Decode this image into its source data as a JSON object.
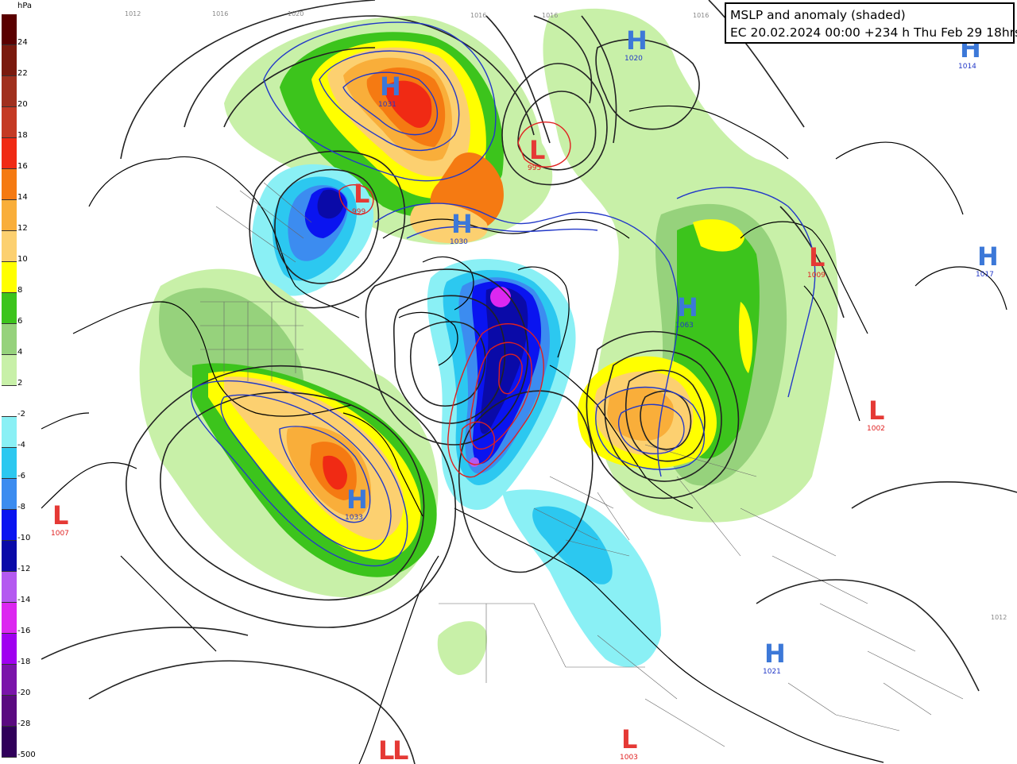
{
  "title": {
    "line1": "MSLP and anomaly (shaded)",
    "line2": "EC 20.02.2024 00:00 +234 h Thu Feb 29 18hrs"
  },
  "legend": {
    "unit": "hPa",
    "levels": [
      {
        "label": "24",
        "color": "#5a0000"
      },
      {
        "label": "22",
        "color": "#7a1a0e"
      },
      {
        "label": "20",
        "color": "#a0301e"
      },
      {
        "label": "18",
        "color": "#c43a24"
      },
      {
        "label": "16",
        "color": "#f02a14"
      },
      {
        "label": "14",
        "color": "#f57a12"
      },
      {
        "label": "12",
        "color": "#f9ae3a"
      },
      {
        "label": "10",
        "color": "#fcd070"
      },
      {
        "label": "8",
        "color": "#ffff00"
      },
      {
        "label": "6",
        "color": "#3cc41c"
      },
      {
        "label": "4",
        "color": "#96d27c"
      },
      {
        "label": "2",
        "color": "#c8f0a8"
      },
      {
        "label": "-2",
        "color": "#ffffff"
      },
      {
        "label": "-4",
        "color": "#8af0f5"
      },
      {
        "label": "-6",
        "color": "#2cc8f0"
      },
      {
        "label": "-8",
        "color": "#3c8cf0"
      },
      {
        "label": "-10",
        "color": "#0a14f0"
      },
      {
        "label": "-12",
        "color": "#0a0aa8"
      },
      {
        "label": "-14",
        "color": "#b45af0"
      },
      {
        "label": "-16",
        "color": "#dc28f0"
      },
      {
        "label": "-18",
        "color": "#a000f0"
      },
      {
        "label": "-20",
        "color": "#7a14aa"
      },
      {
        "label": "-28",
        "color": "#5a0a80"
      },
      {
        "label": "-500",
        "color": "#30005a"
      }
    ]
  },
  "centers": [
    {
      "type": "H",
      "value": "1031",
      "color": "#3c78d8"
    },
    {
      "type": "H",
      "value": "1020",
      "color": "#3c78d8"
    },
    {
      "type": "H",
      "value": "1014",
      "color": "#3c78d8"
    },
    {
      "type": "L",
      "value": "995",
      "color": "#e53935"
    },
    {
      "type": "L",
      "value": "999",
      "color": "#e53935"
    },
    {
      "type": "H",
      "value": "1030",
      "color": "#3c78d8"
    },
    {
      "type": "L",
      "value": "1009",
      "color": "#e53935"
    },
    {
      "type": "H",
      "value": "1017",
      "color": "#3c78d8"
    },
    {
      "type": "H",
      "value": "1063",
      "color": "#3c78d8"
    },
    {
      "type": "L",
      "value": "1002",
      "color": "#e53935"
    },
    {
      "type": "H",
      "value": "1033",
      "color": "#3c78d8"
    },
    {
      "type": "L",
      "value": "1007",
      "color": "#e53935"
    },
    {
      "type": "L",
      "value": "",
      "color": "#e53935"
    },
    {
      "type": "H",
      "value": "1021",
      "color": "#3c78d8"
    },
    {
      "type": "L",
      "value": "",
      "color": "#e53935"
    },
    {
      "type": "L",
      "value": "1003",
      "color": "#e53935"
    }
  ],
  "isobar_labels": [
    "1012",
    "1016",
    "1020",
    "1016",
    "1016",
    "1016",
    "1012"
  ]
}
